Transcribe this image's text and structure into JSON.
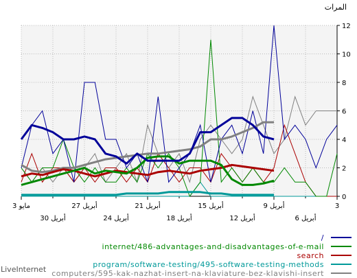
{
  "chart_data": {
    "type": "line",
    "ylabel": "المرات",
    "ylim": [
      0,
      12
    ],
    "yticks": [
      0,
      2,
      4,
      6,
      8,
      10,
      12
    ],
    "x_ticks_upper": [
      "3 مايو",
      "27 أبريل",
      "21 أبريل",
      "15 أبريل",
      "9 أبريل",
      "3"
    ],
    "x_ticks_lower": [
      "30 أبريل",
      "24 أبريل",
      "18 أبريل",
      "12 أبريل",
      "6 أبريل"
    ],
    "x": [
      "2026-05-03",
      "2026-05-02",
      "2026-05-01",
      "2026-04-30",
      "2026-04-29",
      "2026-04-28",
      "2026-04-27",
      "2026-04-26",
      "2026-04-25",
      "2026-04-24",
      "2026-04-23",
      "2026-04-22",
      "2026-04-21",
      "2026-04-20",
      "2026-04-19",
      "2026-04-18",
      "2026-04-17",
      "2026-04-16",
      "2026-04-15",
      "2026-04-14",
      "2026-04-13",
      "2026-04-12",
      "2026-04-11",
      "2026-04-10",
      "2026-04-09",
      "2026-04-08",
      "2026-04-07",
      "2026-04-06",
      "2026-04-05",
      "2026-04-04",
      "2026-04-03"
    ],
    "grid": true,
    "legend_position": "bottom-right",
    "series": [
      {
        "name": "/",
        "color": "#000099",
        "values": [
          2,
          5,
          6,
          3,
          4,
          1,
          8,
          8,
          4,
          4,
          2,
          3,
          1,
          7,
          1,
          2,
          3,
          5,
          1,
          4,
          5,
          3,
          6,
          3,
          12,
          4,
          5,
          4,
          2,
          4,
          5
        ],
        "average": [
          4,
          5,
          4.8,
          4.5,
          4,
          4,
          4.2,
          4,
          3,
          2.8,
          2.3,
          3,
          2.5,
          2.5,
          2.5,
          2.5,
          3,
          4.5,
          4.5,
          5,
          5.5,
          5.5,
          5,
          4.2,
          4,
          null,
          null,
          null,
          null,
          null,
          null
        ]
      },
      {
        "name": "internet/486-advantages-and-disadvantages-of-e-mail",
        "color": "#008800",
        "values": [
          2,
          1,
          2,
          2,
          4,
          2,
          1,
          2,
          1,
          1,
          2,
          1,
          3,
          2,
          3,
          2,
          0,
          1,
          11,
          1,
          2,
          1,
          2,
          1,
          1,
          2,
          1,
          1,
          0,
          0,
          3
        ],
        "average": [
          0.8,
          1,
          1.2,
          1.4,
          1.6,
          1.8,
          2,
          1.6,
          1.8,
          1.7,
          1.6,
          2,
          2.7,
          2.8,
          2.8,
          2.3,
          2.5,
          2.5,
          2.5,
          2.2,
          1.2,
          0.8,
          0.8,
          0.9,
          1.1,
          null,
          null,
          null,
          null,
          null,
          null
        ]
      },
      {
        "name": "search",
        "color": "#aa0000",
        "values": [
          1,
          3,
          1,
          2,
          2,
          1,
          2,
          1,
          2,
          2,
          1,
          2,
          1,
          3,
          2,
          1,
          2,
          2,
          1,
          3,
          2,
          1,
          2,
          1,
          2,
          5,
          3,
          1,
          0,
          0,
          0
        ],
        "average": [
          1.4,
          1.6,
          1.5,
          1.7,
          1.9,
          1.8,
          1.6,
          1.4,
          1.6,
          1.8,
          1.7,
          1.6,
          1.5,
          1.7,
          1.8,
          1.7,
          1.6,
          1.8,
          1.9,
          2,
          2.2,
          2.1,
          2,
          1.9,
          1.8,
          null,
          null,
          null,
          null,
          null,
          null
        ]
      },
      {
        "name": "program/software-testing/495-software-testing-methods",
        "color": "#009999",
        "values": [
          0,
          0,
          0,
          0,
          0,
          0,
          0,
          0,
          0,
          0,
          0,
          0,
          0,
          0,
          0,
          0,
          0,
          1,
          0,
          0,
          0,
          0,
          0,
          0,
          0,
          0,
          0,
          0,
          0,
          0,
          0
        ],
        "average": [
          0.1,
          0.1,
          0.1,
          0.1,
          0.1,
          0.1,
          0.1,
          0.1,
          0.1,
          0.1,
          0.2,
          0.2,
          0.2,
          0.2,
          0.3,
          0.3,
          0.3,
          0.3,
          0.2,
          0.2,
          0.1,
          0.1,
          0.1,
          0.1,
          0.1,
          null,
          null,
          null,
          null,
          null,
          null
        ]
      },
      {
        "name": "computers/595-kak-nazhat-insert-na-klaviature-bez-klavishi-insert",
        "color": "#808080",
        "values": [
          2,
          1,
          2,
          1,
          2,
          1,
          2,
          3,
          1,
          2,
          3,
          1,
          5,
          3,
          2,
          3,
          1,
          4,
          5,
          4,
          3,
          4,
          7,
          5,
          3,
          4,
          7,
          5,
          6,
          6,
          6
        ],
        "average": [
          2.2,
          1.8,
          1.7,
          1.8,
          2,
          2,
          2.2,
          2.4,
          2.6,
          2.7,
          2.8,
          2.9,
          3,
          3,
          3.1,
          3.2,
          3.3,
          3.5,
          4,
          4,
          4.2,
          4.5,
          4.8,
          5.2,
          5.2,
          null,
          null,
          null,
          null,
          null,
          null
        ]
      }
    ]
  },
  "footer": "LiveInternet"
}
